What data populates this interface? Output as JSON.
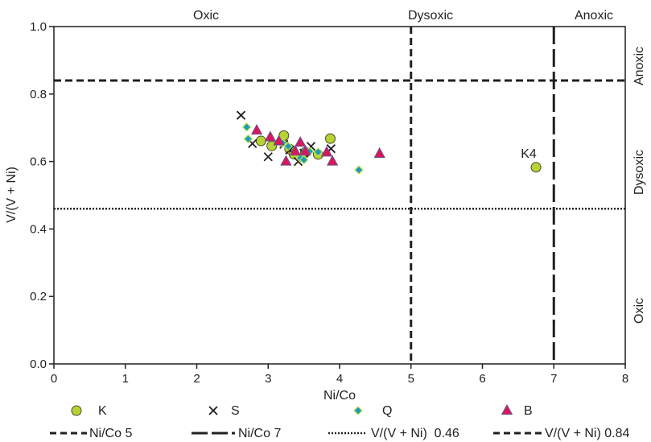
{
  "chart_data": {
    "type": "scatter",
    "xlabel": "Ni/Co",
    "ylabel": "V/(V + Ni)",
    "xlim": [
      0,
      8
    ],
    "ylim": [
      0,
      1.0
    ],
    "x_ticks": [
      "0",
      "1",
      "2",
      "3",
      "4",
      "5",
      "6",
      "7",
      "8"
    ],
    "y_ticks": [
      "0.0",
      "0.2",
      "0.4",
      "0.6",
      "0.8",
      "1.0"
    ],
    "grid": false,
    "legend_position": "bottom",
    "top_zones": [
      {
        "label": "Oxic",
        "from": 0,
        "to": 5
      },
      {
        "label": "Dysoxic",
        "from": 5,
        "to": 7
      },
      {
        "label": "Anoxic",
        "from": 7,
        "to": 8
      }
    ],
    "right_zones": [
      {
        "label": "Anoxic",
        "from": 0.84,
        "to": 1.0
      },
      {
        "label": "Dysoxic",
        "from": 0.46,
        "to": 0.84
      },
      {
        "label": "Oxic",
        "from": 0.0,
        "to": 0.46
      }
    ],
    "reference_lines": [
      {
        "name": "Ni/Co 5",
        "orientation": "vertical",
        "value": 5,
        "style": "dashed"
      },
      {
        "name": "Ni/Co 7",
        "orientation": "vertical",
        "value": 7,
        "style": "longdash"
      },
      {
        "name": "V/(V + Ni)  0.46",
        "orientation": "horizontal",
        "value": 0.46,
        "style": "dotted"
      },
      {
        "name": "V/(V + Ni) 0.84",
        "orientation": "horizontal",
        "value": 0.84,
        "style": "dashed"
      }
    ],
    "annotations": [
      {
        "text": "K4",
        "x": 6.75,
        "y": 0.583
      }
    ],
    "series": [
      {
        "name": "K",
        "marker": "circle",
        "color": "#b5d334",
        "points": [
          [
            2.9,
            0.661
          ],
          [
            3.05,
            0.646
          ],
          [
            3.2,
            0.66
          ],
          [
            3.22,
            0.677
          ],
          [
            3.3,
            0.637
          ],
          [
            3.36,
            0.622
          ],
          [
            3.52,
            0.627
          ],
          [
            3.7,
            0.621
          ],
          [
            3.87,
            0.668
          ],
          [
            6.75,
            0.583
          ]
        ]
      },
      {
        "name": "S",
        "marker": "x",
        "color": "#231f20",
        "points": [
          [
            2.62,
            0.737
          ],
          [
            2.78,
            0.653
          ],
          [
            3.0,
            0.614
          ],
          [
            3.22,
            0.651
          ],
          [
            3.3,
            0.634
          ],
          [
            3.42,
            0.6
          ],
          [
            3.5,
            0.625
          ],
          [
            3.6,
            0.645
          ],
          [
            3.88,
            0.638
          ]
        ]
      },
      {
        "name": "Q",
        "marker": "diamond",
        "color": "#1e9cb4",
        "points": [
          [
            2.7,
            0.702
          ],
          [
            2.72,
            0.667
          ],
          [
            3.2,
            0.655
          ],
          [
            3.28,
            0.645
          ],
          [
            3.45,
            0.61
          ],
          [
            3.5,
            0.605
          ],
          [
            3.58,
            0.63
          ],
          [
            3.7,
            0.628
          ],
          [
            4.27,
            0.575
          ]
        ]
      },
      {
        "name": "B",
        "marker": "triangle",
        "color": "#d8185a",
        "points": [
          [
            2.84,
            0.692
          ],
          [
            3.03,
            0.672
          ],
          [
            3.15,
            0.66
          ],
          [
            3.25,
            0.6
          ],
          [
            3.38,
            0.63
          ],
          [
            3.45,
            0.656
          ],
          [
            3.52,
            0.63
          ],
          [
            3.82,
            0.627
          ],
          [
            3.9,
            0.6
          ],
          [
            4.56,
            0.623
          ]
        ]
      }
    ]
  }
}
